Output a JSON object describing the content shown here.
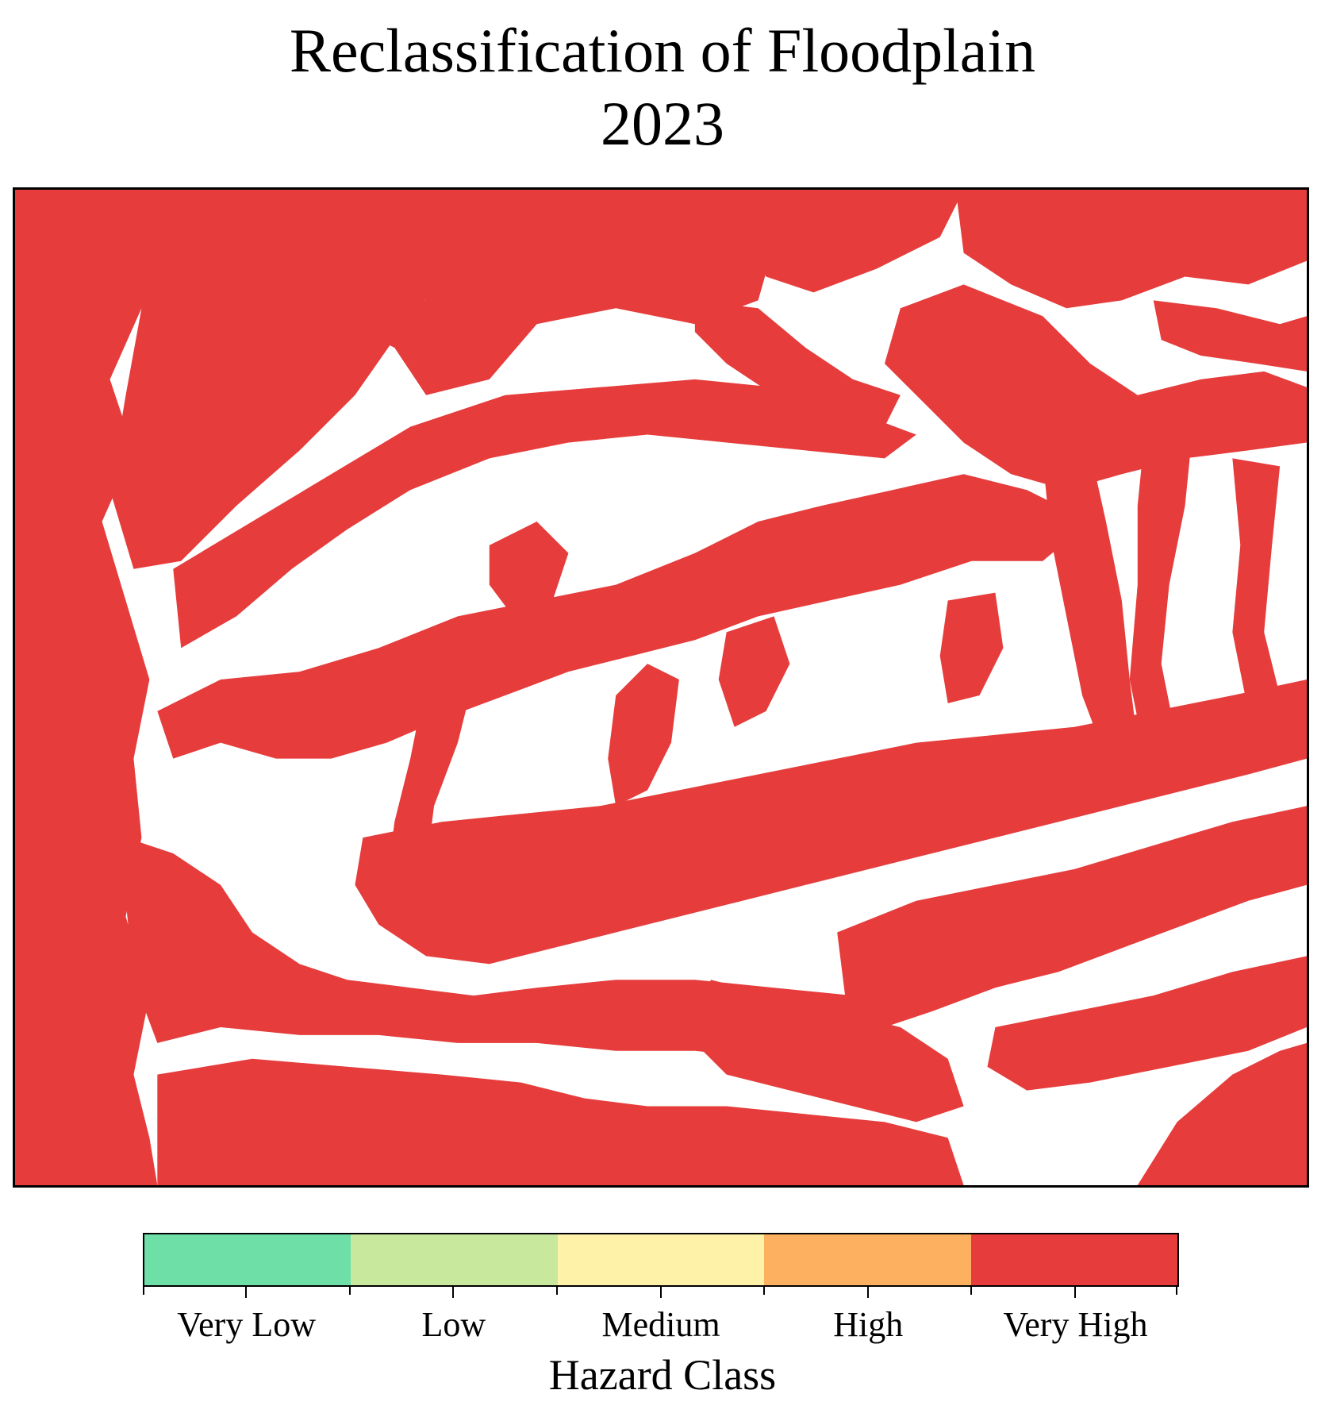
{
  "title": {
    "line1": "Reclassification of Floodplain",
    "line2": "2023"
  },
  "map": {
    "raster_color": "#e63c3c",
    "background_color": "#ffffff",
    "visible_class": "Very High"
  },
  "legend": {
    "title": "Hazard Class",
    "classes": [
      {
        "label": "Very Low",
        "color": "#6fdfa8"
      },
      {
        "label": "Low",
        "color": "#c8e89e"
      },
      {
        "label": "Medium",
        "color": "#fdf2a8"
      },
      {
        "label": "High",
        "color": "#fdb05f"
      },
      {
        "label": "Very High",
        "color": "#e63c3c"
      }
    ]
  }
}
